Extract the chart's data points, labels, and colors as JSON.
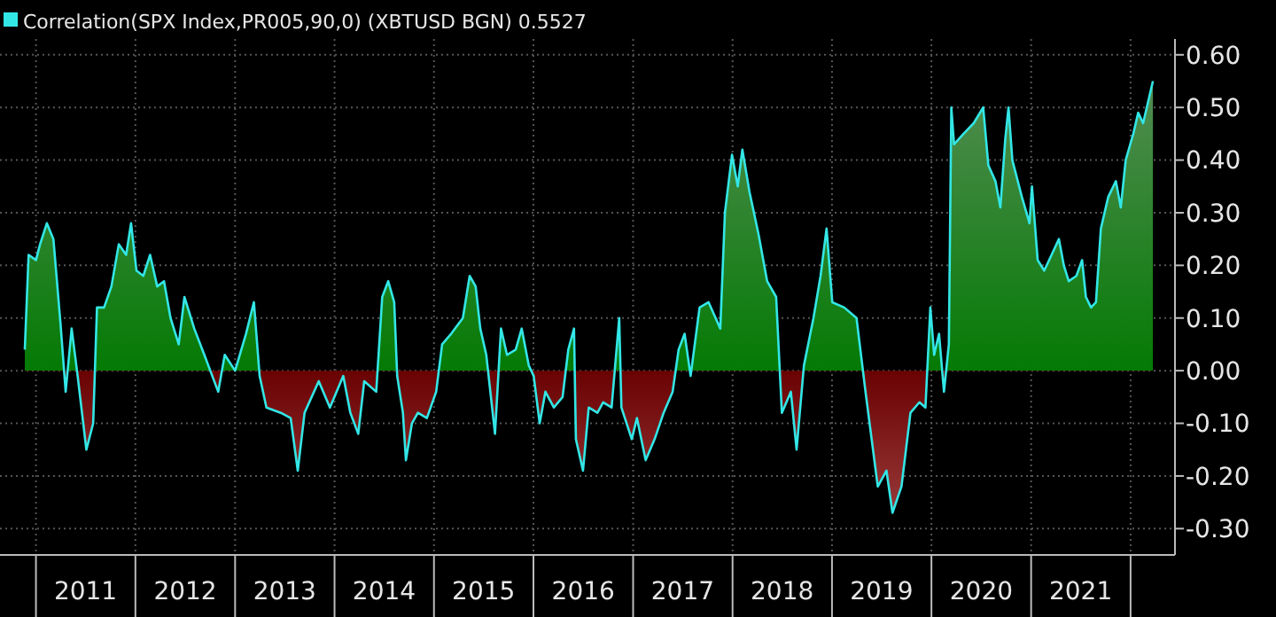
{
  "chart_data": {
    "type": "area",
    "legend": "top left",
    "grid": true,
    "xlim": [
      "2010-08-22",
      "2022-06-13"
    ],
    "xticks": [
      {
        "value": "2011-01-01",
        "label": null
      },
      {
        "value": "2011-07-02",
        "label": "2011"
      },
      {
        "value": "2012-01-01",
        "label": null
      },
      {
        "value": "2012-07-02",
        "label": "2012"
      },
      {
        "value": "2013-01-01",
        "label": null
      },
      {
        "value": "2013-07-02",
        "label": "2013"
      },
      {
        "value": "2014-01-01",
        "label": null
      },
      {
        "value": "2014-07-02",
        "label": "2014"
      },
      {
        "value": "2015-01-01",
        "label": null
      },
      {
        "value": "2015-07-02",
        "label": "2015"
      },
      {
        "value": "2016-01-01",
        "label": null
      },
      {
        "value": "2016-07-02",
        "label": "2016"
      },
      {
        "value": "2017-01-01",
        "label": null
      },
      {
        "value": "2017-07-02",
        "label": "2017"
      },
      {
        "value": "2018-01-01",
        "label": null
      },
      {
        "value": "2018-07-02",
        "label": "2018"
      },
      {
        "value": "2019-01-01",
        "label": null
      },
      {
        "value": "2019-07-02",
        "label": "2019"
      },
      {
        "value": "2020-01-01",
        "label": null
      },
      {
        "value": "2020-07-02",
        "label": "2020"
      },
      {
        "value": "2021-01-01",
        "label": null
      },
      {
        "value": "2021-07-02",
        "label": "2021"
      },
      {
        "value": "2022-01-01",
        "label": null
      }
    ],
    "ylim": [
      -0.35,
      0.63
    ],
    "yticks": [
      {
        "value": 0.6,
        "label": "0.60"
      },
      {
        "value": 0.5,
        "label": "0.50"
      },
      {
        "value": 0.4,
        "label": "0.40"
      },
      {
        "value": 0.3,
        "label": "0.30"
      },
      {
        "value": 0.2,
        "label": "0.20"
      },
      {
        "value": 0.1,
        "label": "0.10"
      },
      {
        "value": 0,
        "label": "0.00"
      },
      {
        "value": -0.1,
        "label": "-0.10"
      },
      {
        "value": -0.2,
        "label": "-0.20"
      },
      {
        "value": -0.3,
        "label": "-0.30"
      }
    ],
    "x": [
      "2010-11-21",
      "2010-12-05",
      "2011-01-01",
      "2011-01-16",
      "2011-02-10",
      "2011-03-06",
      "2011-04-01",
      "2011-04-20",
      "2011-05-12",
      "2011-06-03",
      "2011-07-05",
      "2011-07-30",
      "2011-08-13",
      "2011-09-08",
      "2011-10-05",
      "2011-11-01",
      "2011-11-28",
      "2011-12-16",
      "2012-01-05",
      "2012-01-30",
      "2012-02-24",
      "2012-03-21",
      "2012-04-15",
      "2012-05-09",
      "2012-06-08",
      "2012-06-29",
      "2012-08-04",
      "2012-09-10",
      "2012-10-31",
      "2012-11-24",
      "2013-01-01",
      "2013-02-10",
      "2013-03-11",
      "2013-04-01",
      "2013-04-26",
      "2013-06-18",
      "2013-07-24",
      "2013-08-19",
      "2013-09-13",
      "2013-11-04",
      "2013-12-15",
      "2014-02-02",
      "2014-02-28",
      "2014-03-29",
      "2014-04-20",
      "2014-06-03",
      "2014-06-25",
      "2014-07-17",
      "2014-08-08",
      "2014-08-19",
      "2014-09-09",
      "2014-09-20",
      "2014-10-12",
      "2014-11-03",
      "2014-12-06",
      "2015-01-09",
      "2015-01-31",
      "2015-03-05",
      "2015-04-17",
      "2015-05-12",
      "2015-06-03",
      "2015-06-20",
      "2015-07-12",
      "2015-08-13",
      "2015-09-04",
      "2015-09-26",
      "2015-10-28",
      "2015-11-19",
      "2015-12-15",
      "2016-01-02",
      "2016-01-24",
      "2016-02-14",
      "2016-03-16",
      "2016-04-17",
      "2016-05-08",
      "2016-05-29",
      "2016-06-05",
      "2016-07-01",
      "2016-07-22",
      "2016-08-23",
      "2016-09-13",
      "2016-10-14",
      "2016-11-11",
      "2016-11-19",
      "2016-12-27",
      "2017-01-15",
      "2017-02-16",
      "2017-03-21",
      "2017-04-23",
      "2017-05-26",
      "2017-06-17",
      "2017-07-09",
      "2017-07-31",
      "2017-09-02",
      "2017-10-05",
      "2017-11-17",
      "2017-12-04",
      "2017-12-30",
      "2018-01-20",
      "2018-02-06",
      "2018-03-04",
      "2018-04-06",
      "2018-05-08",
      "2018-06-10",
      "2018-07-01",
      "2018-08-03",
      "2018-08-24",
      "2018-09-20",
      "2018-10-25",
      "2018-11-20",
      "2018-12-12",
      "2019-01-02",
      "2019-02-15",
      "2019-04-01",
      "2019-05-04",
      "2019-06-18",
      "2019-07-20",
      "2019-08-11",
      "2019-09-13",
      "2019-10-16",
      "2019-11-18",
      "2019-12-10",
      "2019-12-28",
      "2020-01-11",
      "2020-01-29",
      "2020-02-16",
      "2020-03-05",
      "2020-03-14",
      "2020-03-24",
      "2020-04-28",
      "2020-06-04",
      "2020-07-09",
      "2020-07-28",
      "2020-08-23",
      "2020-09-10",
      "2020-09-28",
      "2020-10-10",
      "2020-10-24",
      "2020-11-28",
      "2020-12-26",
      "2021-01-04",
      "2021-01-25",
      "2021-02-18",
      "2021-03-17",
      "2021-04-13",
      "2021-05-01",
      "2021-05-19",
      "2021-06-16",
      "2021-07-07",
      "2021-07-21",
      "2021-08-09",
      "2021-08-27",
      "2021-09-14",
      "2021-10-11",
      "2021-11-08",
      "2021-11-26",
      "2021-12-14",
      "2022-01-11",
      "2022-01-29",
      "2022-02-16",
      "2022-03-06",
      "2022-03-24"
    ],
    "series": [
      {
        "name": "Correlation(SPX Index,PR005,90,0) (XBTUSD BGN) 0.5527",
        "color": "#33e6e6",
        "values": [
          0.04,
          0.22,
          0.21,
          0.24,
          0.28,
          0.25,
          0.09,
          -0.04,
          0.08,
          -0.01,
          -0.15,
          -0.1,
          0.12,
          0.12,
          0.16,
          0.24,
          0.22,
          0.28,
          0.19,
          0.18,
          0.22,
          0.16,
          0.17,
          0.1,
          0.05,
          0.14,
          0.08,
          0.03,
          -0.04,
          0.03,
          0.0,
          0.07,
          0.13,
          -0.01,
          -0.07,
          -0.08,
          -0.09,
          -0.19,
          -0.08,
          -0.02,
          -0.07,
          -0.01,
          -0.08,
          -0.12,
          -0.02,
          -0.04,
          0.14,
          0.17,
          0.13,
          -0.01,
          -0.08,
          -0.17,
          -0.1,
          -0.08,
          -0.09,
          -0.04,
          0.05,
          0.07,
          0.1,
          0.18,
          0.16,
          0.08,
          0.03,
          -0.12,
          0.08,
          0.03,
          0.04,
          0.08,
          0.01,
          -0.01,
          -0.1,
          -0.04,
          -0.07,
          -0.05,
          0.04,
          0.08,
          -0.13,
          -0.19,
          -0.07,
          -0.08,
          -0.06,
          -0.07,
          0.1,
          -0.07,
          -0.13,
          -0.09,
          -0.17,
          -0.13,
          -0.08,
          -0.04,
          0.04,
          0.07,
          -0.01,
          0.12,
          0.13,
          0.08,
          0.3,
          0.41,
          0.35,
          0.42,
          0.34,
          0.26,
          0.17,
          0.14,
          -0.08,
          -0.04,
          -0.15,
          0.01,
          0.1,
          0.18,
          0.27,
          0.13,
          0.12,
          0.1,
          -0.04,
          -0.22,
          -0.19,
          -0.27,
          -0.22,
          -0.08,
          -0.06,
          -0.07,
          0.12,
          0.03,
          0.07,
          -0.04,
          0.05,
          0.5,
          0.43,
          0.45,
          0.47,
          0.5,
          0.39,
          0.36,
          0.31,
          0.44,
          0.5,
          0.4,
          0.33,
          0.28,
          0.35,
          0.21,
          0.19,
          0.22,
          0.25,
          0.2,
          0.17,
          0.18,
          0.21,
          0.14,
          0.12,
          0.13,
          0.27,
          0.33,
          0.36,
          0.31,
          0.4,
          0.45,
          0.49,
          0.47,
          0.51,
          0.55
        ]
      }
    ]
  }
}
